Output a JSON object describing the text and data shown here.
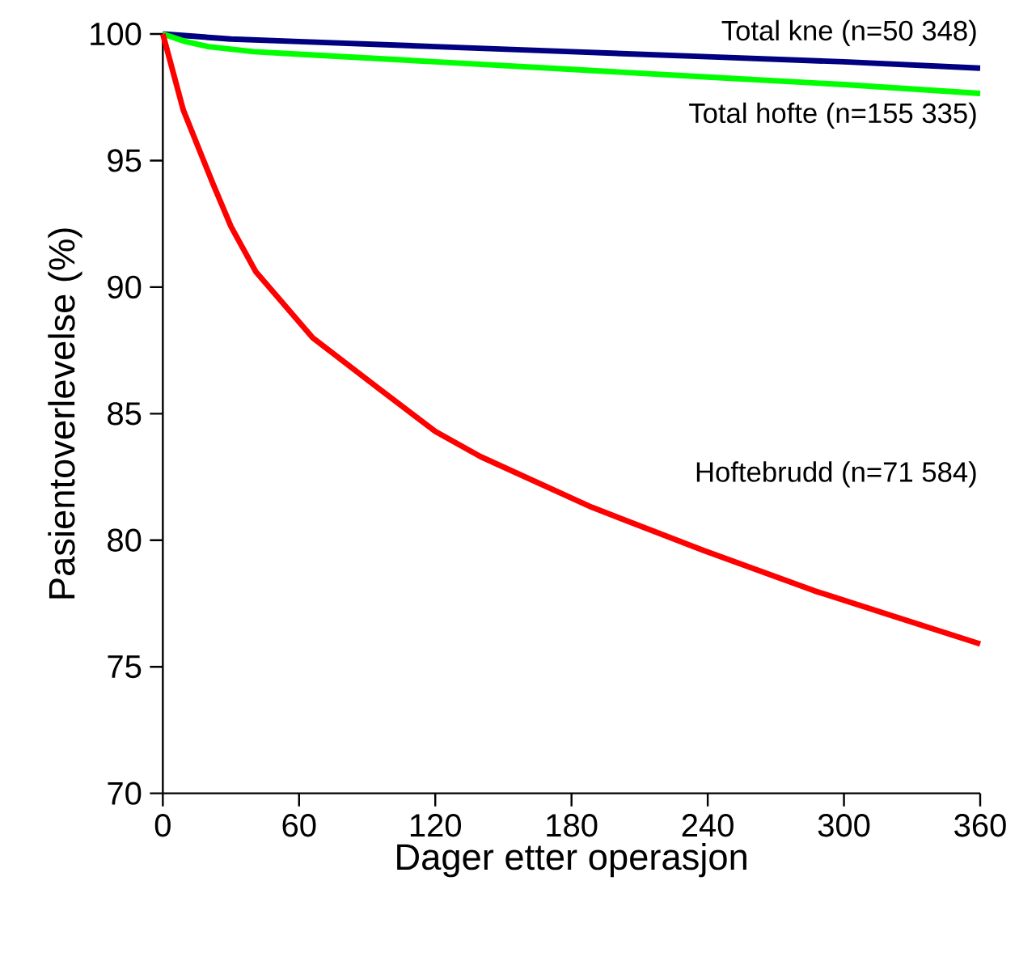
{
  "chart_data": {
    "type": "line",
    "xlabel": "Dager etter operasjon",
    "ylabel": "Pasientoverlevelse (%)",
    "xlim": [
      0,
      360
    ],
    "xticks": [
      0,
      60,
      120,
      180,
      240,
      300,
      360
    ],
    "ylim": [
      70,
      100
    ],
    "yticks": [
      70,
      75,
      80,
      85,
      90,
      95,
      100
    ],
    "grid": false,
    "legend": false,
    "marker": "none",
    "line_style": "solid",
    "series": [
      {
        "name": "Total kne (n=50 348)",
        "color": "#000080",
        "x": [
          0,
          30,
          60,
          120,
          180,
          240,
          300,
          360
        ],
        "values": [
          100,
          99.8,
          99.7,
          99.5,
          99.3,
          99.1,
          98.9,
          98.65
        ]
      },
      {
        "name": "Total hofte (n=155 335)",
        "color": "#00ff00",
        "x": [
          0,
          10,
          20,
          40,
          60,
          120,
          180,
          240,
          300,
          360
        ],
        "values": [
          100,
          99.7,
          99.5,
          99.3,
          99.2,
          98.9,
          98.6,
          98.3,
          98.0,
          97.65
        ]
      },
      {
        "name": "Hoftebrudd (n=71 584)",
        "color": "#ff0000",
        "x": [
          0,
          9,
          22,
          30,
          41,
          66,
          95,
          120,
          140,
          189,
          238,
          287,
          360
        ],
        "values": [
          100,
          97.0,
          94.1,
          92.4,
          90.6,
          88.0,
          86.0,
          84.3,
          83.3,
          81.3,
          79.6,
          78.0,
          75.9
        ]
      }
    ]
  }
}
